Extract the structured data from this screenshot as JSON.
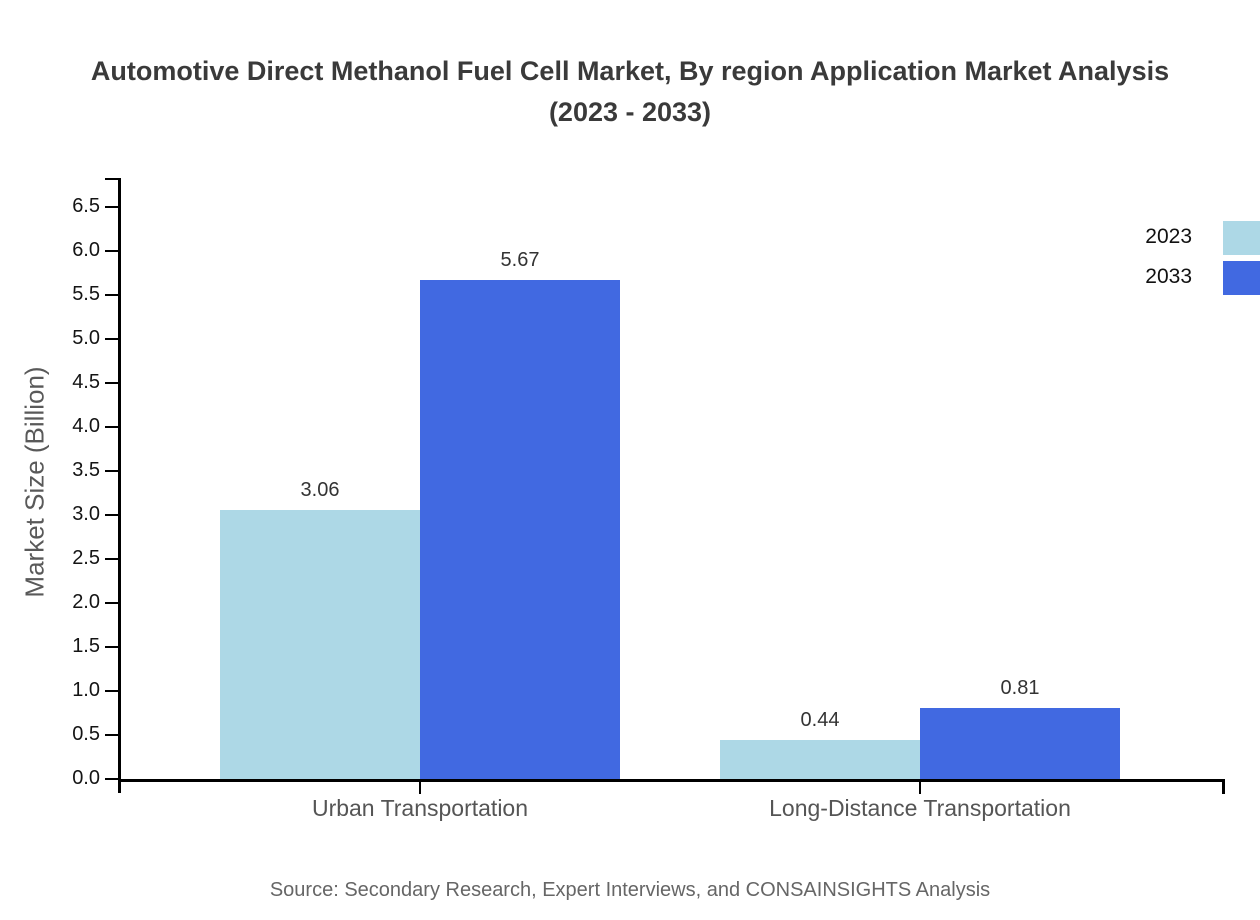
{
  "chart_data": {
    "type": "bar",
    "title": "Automotive Direct Methanol Fuel Cell Market, By region Application Market Analysis (2023 - 2033)",
    "categories": [
      "Urban Transportation",
      "Long-Distance Transportation"
    ],
    "series": [
      {
        "name": "2023",
        "color": "#ADD8E6",
        "values": [
          3.06,
          0.44
        ]
      },
      {
        "name": "2033",
        "color": "#4169E1",
        "values": [
          5.67,
          0.81
        ]
      }
    ],
    "xlabel": "",
    "ylabel": "Market Size (Billion)",
    "ylim": [
      0,
      6.5
    ],
    "ytick_step": 0.5,
    "grid": false,
    "legend_position": "top-right",
    "value_label_decimals": 2
  },
  "footer": {
    "source": "Source: Secondary Research, Expert Interviews, and CONSAINSIGHTS Analysis"
  }
}
